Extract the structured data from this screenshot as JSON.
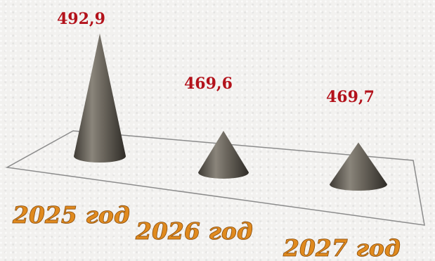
{
  "chart_data": {
    "type": "bar",
    "mark_shape": "cone",
    "categories": [
      "2025 год",
      "2026 год",
      "2027 год"
    ],
    "values": [
      492.9,
      469.6,
      469.7
    ],
    "value_labels": [
      "492,9",
      "469,6",
      "469,7"
    ],
    "title": "",
    "xlabel": "",
    "ylabel": "",
    "grid": false,
    "colors": {
      "cone": "#5e5a52",
      "value_label": "#b3121b",
      "category_label": "#e08a1e",
      "floor_line": "#8c8c8c"
    }
  }
}
